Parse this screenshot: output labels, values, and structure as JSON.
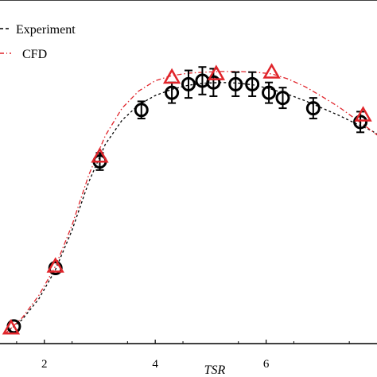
{
  "chart_data": {
    "type": "line",
    "xlabel": "TSR",
    "ylabel": "",
    "title": "",
    "xlim": [
      1.2,
      8.0
    ],
    "ylim": [
      0.0,
      1.0
    ],
    "x_ticks": [
      2,
      4,
      6
    ],
    "x_tick_labels": [
      "2",
      "4",
      "6"
    ],
    "grid": false,
    "legend_position": "top-left",
    "series": [
      {
        "name": "Experiment",
        "marker": "circle",
        "line_style": "dashed",
        "color": "#000000",
        "x": [
          1.45,
          2.2,
          3.0,
          3.75,
          4.3,
          4.6,
          4.85,
          5.05,
          5.45,
          5.75,
          6.05,
          6.3,
          6.85,
          7.7
        ],
        "y": [
          0.05,
          0.22,
          0.53,
          0.68,
          0.73,
          0.755,
          0.765,
          0.76,
          0.755,
          0.755,
          0.73,
          0.715,
          0.685,
          0.645
        ],
        "error": [
          0.0,
          0.0,
          0.025,
          0.025,
          0.03,
          0.04,
          0.04,
          0.04,
          0.035,
          0.035,
          0.03,
          0.03,
          0.03,
          0.03
        ]
      },
      {
        "name": "CFD",
        "marker": "triangle",
        "line_style": "dash-dot",
        "color": "#e0242a",
        "x": [
          1.4,
          2.2,
          3.0,
          4.3,
          5.1,
          6.1,
          7.75
        ],
        "y": [
          0.045,
          0.225,
          0.545,
          0.775,
          0.785,
          0.79,
          0.665
        ]
      }
    ],
    "dashed_fits": [
      {
        "series": "Experiment",
        "color": "#000000",
        "x": [
          1.3,
          1.6,
          1.9,
          2.2,
          2.5,
          2.8,
          3.1,
          3.4,
          3.7,
          4.0,
          4.3,
          4.6,
          4.9,
          5.2,
          5.5,
          5.8,
          6.1,
          6.4,
          6.7,
          7.0,
          7.3,
          7.6,
          7.9,
          8.1
        ],
        "y": [
          0.03,
          0.07,
          0.13,
          0.215,
          0.33,
          0.47,
          0.58,
          0.65,
          0.695,
          0.722,
          0.74,
          0.752,
          0.758,
          0.76,
          0.758,
          0.752,
          0.74,
          0.725,
          0.707,
          0.686,
          0.665,
          0.642,
          0.62,
          0.6
        ]
      },
      {
        "series": "CFD",
        "color": "#e0242a",
        "x": [
          1.3,
          1.6,
          1.9,
          2.2,
          2.5,
          2.8,
          3.1,
          3.4,
          3.7,
          4.0,
          4.3,
          4.6,
          4.9,
          5.2,
          5.5,
          5.8,
          6.1,
          6.4,
          6.7,
          7.0,
          7.3,
          7.6,
          7.9,
          8.1
        ],
        "y": [
          0.03,
          0.075,
          0.14,
          0.225,
          0.345,
          0.49,
          0.605,
          0.685,
          0.735,
          0.765,
          0.78,
          0.787,
          0.79,
          0.792,
          0.792,
          0.79,
          0.785,
          0.77,
          0.748,
          0.72,
          0.69,
          0.655,
          0.62,
          0.595
        ]
      }
    ]
  },
  "legend": {
    "items": [
      {
        "label": "Experiment",
        "color": "#000000"
      },
      {
        "label": "CFD",
        "color": "#e0242a"
      }
    ]
  }
}
